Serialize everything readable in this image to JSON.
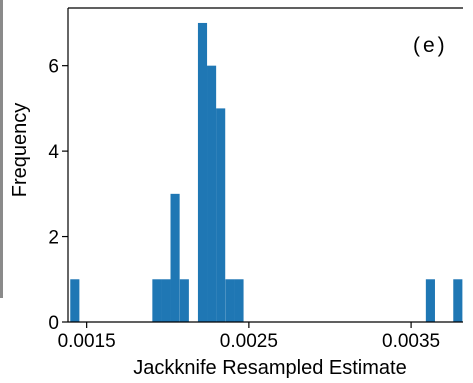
{
  "chart_data": {
    "type": "bar",
    "title": "",
    "panel_label": "(e)",
    "xlabel": "Jackknife Resampled Estimate",
    "ylabel": "Frequency",
    "xlim": [
      0.001385,
      0.00382
    ],
    "ylim": [
      0,
      7.35
    ],
    "x_ticks": [
      {
        "value": 0.0015,
        "label": "0.0015"
      },
      {
        "value": 0.0025,
        "label": "0.0025"
      },
      {
        "value": 0.0035,
        "label": "0.0035"
      }
    ],
    "y_ticks": [
      {
        "value": 0,
        "label": "0"
      },
      {
        "value": 2,
        "label": "2"
      },
      {
        "value": 4,
        "label": "4"
      },
      {
        "value": 6,
        "label": "6"
      }
    ],
    "color": "#1f77b4",
    "bin_width": 5.62e-05,
    "bins": [
      {
        "x0": 0.001399,
        "count": 1
      },
      {
        "x0": 0.001905,
        "count": 1
      },
      {
        "x0": 0.001961,
        "count": 1
      },
      {
        "x0": 0.002017,
        "count": 3
      },
      {
        "x0": 0.002074,
        "count": 1
      },
      {
        "x0": 0.002186,
        "count": 7
      },
      {
        "x0": 0.002242,
        "count": 6
      },
      {
        "x0": 0.002298,
        "count": 5
      },
      {
        "x0": 0.002355,
        "count": 1
      },
      {
        "x0": 0.002411,
        "count": 1
      },
      {
        "x0": 0.003591,
        "count": 1
      },
      {
        "x0": 0.00376,
        "count": 1
      }
    ]
  }
}
